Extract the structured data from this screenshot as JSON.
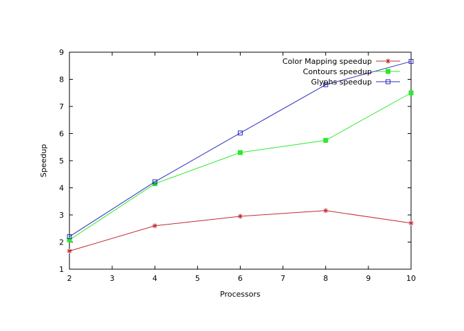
{
  "chart_data": {
    "type": "line",
    "xlabel": "Processors",
    "ylabel": "Speedup",
    "xlim": [
      2,
      10
    ],
    "ylim": [
      1,
      9
    ],
    "xticks": [
      2,
      3,
      4,
      5,
      6,
      7,
      8,
      9,
      10
    ],
    "yticks": [
      1,
      2,
      3,
      4,
      5,
      6,
      7,
      8,
      9
    ],
    "grid": false,
    "legend_position": "top-right",
    "x": [
      2,
      4,
      6,
      8,
      10
    ],
    "series": [
      {
        "name": "Color Mapping speedup",
        "values": [
          1.67,
          2.6,
          2.95,
          3.16,
          2.7
        ],
        "color": "#c0282d",
        "marker": "star"
      },
      {
        "name": "Contours speedup",
        "values": [
          2.08,
          4.15,
          5.3,
          5.75,
          7.5
        ],
        "color": "#2ee82e",
        "marker": "filled-square"
      },
      {
        "name": "Glyphs speedup",
        "values": [
          2.2,
          4.22,
          6.02,
          7.8,
          8.66
        ],
        "color": "#2a2abe",
        "marker": "open-square"
      }
    ]
  }
}
